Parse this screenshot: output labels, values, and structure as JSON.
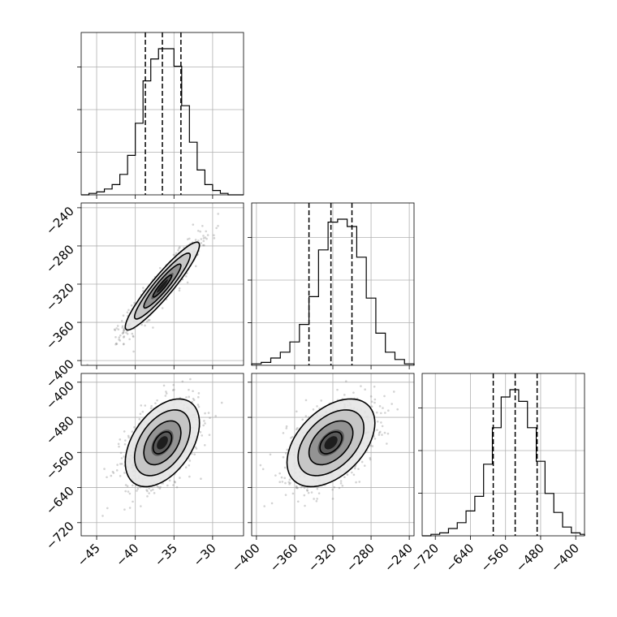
{
  "chart_data": {
    "type": "corner",
    "parameters": [
      {
        "label": "",
        "range": [
          -47,
          -26
        ],
        "ticks": [
          -45,
          -40,
          -35,
          -30
        ],
        "tick_labels": [
          "−45",
          "−40",
          "−35",
          "−30"
        ],
        "quantiles": [
          -38.7,
          -36.5,
          -34.1
        ],
        "hist_edges": [
          -47,
          -46,
          -45,
          -44,
          -43,
          -42,
          -41,
          -40,
          -39,
          -38,
          -37,
          -36,
          -35,
          -34,
          -33,
          -32,
          -31,
          -30,
          -29,
          -28,
          -27,
          -26
        ],
        "hist_counts": [
          0.0,
          0.01,
          0.02,
          0.04,
          0.07,
          0.14,
          0.27,
          0.49,
          0.78,
          0.93,
          1.0,
          1.0,
          0.88,
          0.61,
          0.36,
          0.17,
          0.07,
          0.03,
          0.01,
          0.0,
          0.0
        ]
      },
      {
        "label": "",
        "range": [
          -405,
          -235
        ],
        "ticks": [
          -400,
          -360,
          -320,
          -280,
          -240
        ],
        "tick_labels": [
          "−400",
          "−360",
          "−320",
          "−280",
          "−240"
        ],
        "quantiles": [
          -345,
          -322,
          -300
        ],
        "hist_edges": [
          -405,
          -395,
          -385,
          -375,
          -365,
          -355,
          -345,
          -335,
          -325,
          -315,
          -305,
          -295,
          -285,
          -275,
          -265,
          -255,
          -245,
          -235
        ],
        "hist_counts": [
          0.01,
          0.02,
          0.05,
          0.09,
          0.16,
          0.28,
          0.47,
          0.79,
          0.98,
          1.0,
          0.95,
          0.74,
          0.46,
          0.22,
          0.09,
          0.04,
          0.01
        ]
      },
      {
        "label": "",
        "range": [
          -750,
          -380
        ],
        "ticks": [
          -720,
          -640,
          -560,
          -480,
          -400
        ],
        "tick_labels": [
          "−720",
          "−640",
          "−560",
          "−480",
          "−400"
        ],
        "quantiles": [
          -588,
          -538,
          -488
        ],
        "hist_edges": [
          -750,
          -730,
          -710,
          -690,
          -670,
          -650,
          -630,
          -610,
          -590,
          -570,
          -550,
          -530,
          -510,
          -490,
          -470,
          -450,
          -430,
          -410,
          -390,
          -380
        ],
        "hist_counts": [
          0.0,
          0.01,
          0.02,
          0.05,
          0.09,
          0.17,
          0.27,
          0.49,
          0.74,
          0.95,
          1.0,
          0.92,
          0.74,
          0.51,
          0.29,
          0.16,
          0.06,
          0.02,
          0.01
        ]
      }
    ],
    "pairs": [
      {
        "x": 0,
        "y": 1,
        "mean": [
          -36.5,
          -322
        ],
        "sd": [
          2.4,
          23
        ],
        "corr": 0.93
      },
      {
        "x": 0,
        "y": 2,
        "mean": [
          -36.5,
          -538
        ],
        "sd": [
          2.4,
          50
        ],
        "corr": 0.45
      },
      {
        "x": 1,
        "y": 2,
        "mean": [
          -322,
          -538
        ],
        "sd": [
          23,
          50
        ],
        "corr": 0.45
      }
    ],
    "grid": true,
    "quantile_style": "dashed",
    "contour_levels_sigma": [
      0.5,
      1.0,
      1.5,
      2.0
    ]
  }
}
